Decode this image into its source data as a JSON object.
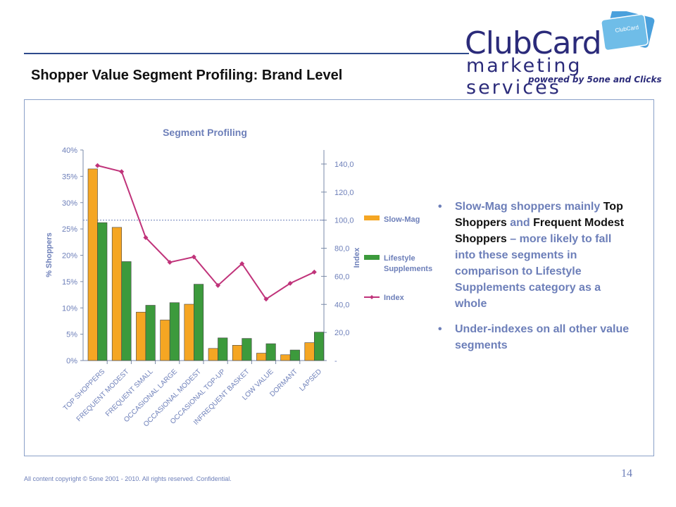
{
  "logo": {
    "card_text": "ClubCard",
    "wordmark": "ClubCard",
    "subtitle": "marketing services",
    "tagline": "powered by 5one and Clicks"
  },
  "title": "Shopper Value Segment Profiling: Brand Level",
  "chart_data": {
    "type": "bar",
    "title": "Segment Profiling",
    "ylabel": "% Shoppers",
    "y2label": "Index",
    "ylim": [
      0,
      40
    ],
    "y2lim": [
      0,
      150
    ],
    "yticks": [
      "0%",
      "5%",
      "10%",
      "15%",
      "20%",
      "25%",
      "30%",
      "35%",
      "40%"
    ],
    "y2ticks": [
      "-",
      "20,0",
      "40,0",
      "60,0",
      "80,0",
      "100,0",
      "120,0",
      "140,0"
    ],
    "categories": [
      "TOP SHOPPERS",
      "FREQUENT MODEST",
      "FREQUENT SMALL",
      "OCCASIONAL LARGE",
      "OCCASIONAL MODEST",
      "OCCASIONAL TOP-UP",
      "INFREQUENT BASKET",
      "LOW VALUE",
      "DORMANT",
      "LAPSED"
    ],
    "series": [
      {
        "name": "Slow-Mag",
        "type": "bar",
        "axis": "left",
        "color": "#f5a623",
        "values": [
          36.4,
          25.3,
          9.2,
          7.7,
          10.7,
          2.3,
          2.9,
          1.4,
          1.1,
          3.4
        ]
      },
      {
        "name": "Lifestyle Supplements",
        "type": "bar",
        "axis": "left",
        "color": "#3c9a3c",
        "values": [
          26.2,
          18.8,
          10.5,
          11.0,
          14.5,
          4.3,
          4.2,
          3.2,
          2.0,
          5.4
        ]
      },
      {
        "name": "Index",
        "type": "line",
        "axis": "right",
        "color": "#c0337a",
        "values": [
          138.9,
          134.6,
          87.6,
          70.0,
          73.8,
          53.5,
          69.0,
          43.8,
          55.0,
          63.0
        ]
      }
    ],
    "reference_line": 100,
    "legend": "right",
    "grid": false
  },
  "bullets": [
    {
      "parts": [
        {
          "text": "Slow-Mag shoppers mainly ",
          "hl": false
        },
        {
          "text": "Top Shoppers",
          "hl": true
        },
        {
          "text": " and ",
          "hl": false
        },
        {
          "text": "Frequent Modest Shoppers",
          "hl": true
        },
        {
          "text": " – more likely to fall into these segments in comparison to Lifestyle Supplements category as a whole",
          "hl": false
        }
      ]
    },
    {
      "parts": [
        {
          "text": "Under-indexes on all other value segments",
          "hl": false
        }
      ]
    }
  ],
  "bullet_symbol": "•",
  "footer": "All content copyright © 5one 2001 - 2010. All rights reserved. Confidential.",
  "page_number": "14"
}
